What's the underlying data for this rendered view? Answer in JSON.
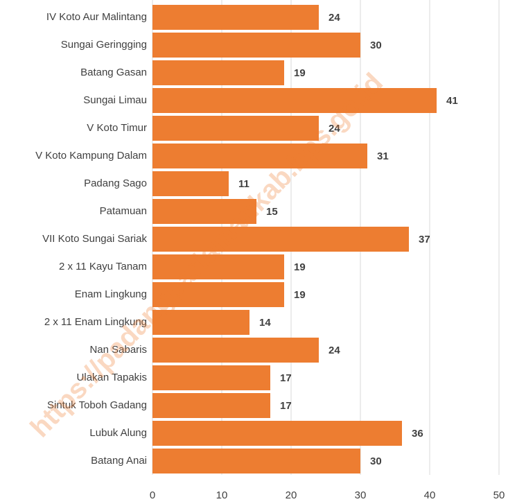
{
  "chart_data": {
    "type": "bar",
    "orientation": "horizontal",
    "categories": [
      "IV Koto Aur Malintang",
      "Sungai Geringging",
      "Batang  Gasan",
      "Sungai Limau",
      "V Koto Timur",
      "V Koto Kampung Dalam",
      "Padang Sago",
      "Patamuan",
      "VII Koto Sungai Sariak",
      "2 x 11 Kayu Tanam",
      "Enam Lingkung",
      "2 x 11 Enam Lingkung",
      "Nan Sabaris",
      "Ulakan Tapakis",
      "Sintuk Toboh Gadang",
      "Lubuk Alung",
      "Batang Anai"
    ],
    "values": [
      24,
      30,
      19,
      41,
      24,
      31,
      11,
      15,
      37,
      19,
      19,
      14,
      24,
      17,
      17,
      36,
      30
    ],
    "color": "#ed7d31",
    "xlim": [
      0,
      50
    ],
    "xticks": [
      0,
      10,
      20,
      30,
      40,
      50
    ],
    "grid": true,
    "watermark": "https://padangpariamankab.bps.go.id"
  }
}
